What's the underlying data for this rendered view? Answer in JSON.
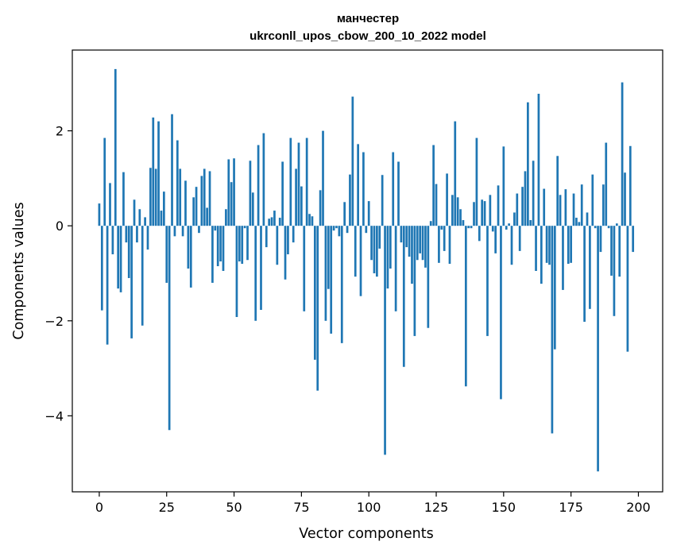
{
  "chart_data": {
    "type": "bar",
    "title_line1": "манчестер",
    "title_line2": "ukrconll_upos_cbow_200_10_2022 model",
    "xlabel": "Vector components",
    "ylabel": "Components values",
    "xlim": [
      -10,
      209
    ],
    "ylim": [
      -5.6,
      3.7
    ],
    "x_ticks": [
      0,
      25,
      50,
      75,
      100,
      125,
      150,
      175,
      200
    ],
    "y_ticks": [
      -4,
      -2,
      0,
      2
    ],
    "y_tick_labels": [
      "−4",
      "−2",
      "0",
      "2"
    ],
    "grid": false,
    "bar_color": "#1f77b4",
    "values": [
      0.47,
      -1.78,
      1.85,
      -2.5,
      0.9,
      -0.6,
      3.3,
      -1.32,
      -1.4,
      1.13,
      -0.35,
      -1.1,
      -2.37,
      0.55,
      -0.35,
      0.35,
      -2.1,
      0.18,
      -0.5,
      1.22,
      2.28,
      1.2,
      2.2,
      0.32,
      0.72,
      -1.2,
      -4.3,
      2.35,
      -0.22,
      1.8,
      1.2,
      -0.22,
      0.95,
      -0.9,
      -1.3,
      0.6,
      0.82,
      -0.15,
      1.05,
      1.2,
      0.38,
      1.15,
      -1.2,
      -0.1,
      -0.85,
      -0.75,
      -0.95,
      0.35,
      1.4,
      0.92,
      1.42,
      -1.92,
      -0.75,
      -0.8,
      -0.05,
      -0.72,
      1.37,
      0.7,
      -2.0,
      1.7,
      -1.77,
      1.95,
      -0.45,
      0.15,
      0.18,
      0.32,
      -0.82,
      0.17,
      1.35,
      -1.13,
      -0.6,
      1.85,
      -0.35,
      1.2,
      1.75,
      0.83,
      -1.8,
      1.85,
      0.25,
      0.2,
      -2.82,
      -3.47,
      0.75,
      2.0,
      -2.0,
      -1.33,
      -2.27,
      -0.1,
      -0.05,
      -0.22,
      -2.47,
      0.5,
      -0.15,
      1.08,
      2.72,
      -1.07,
      1.72,
      -1.48,
      1.55,
      -0.15,
      0.52,
      -0.72,
      -1.0,
      -1.07,
      -0.48,
      1.07,
      -4.82,
      -1.32,
      -0.9,
      1.55,
      -1.8,
      1.35,
      -0.35,
      -2.97,
      -0.45,
      -0.65,
      -1.22,
      -2.32,
      -0.72,
      -0.58,
      -0.72,
      -0.88,
      -2.15,
      0.1,
      1.7,
      0.88,
      -0.78,
      -0.08,
      -0.53,
      1.1,
      -0.8,
      0.65,
      2.2,
      0.6,
      0.35,
      0.12,
      -3.38,
      -0.05,
      -0.05,
      0.5,
      1.85,
      -0.32,
      0.55,
      0.52,
      -2.32,
      0.65,
      -0.12,
      -0.58,
      0.85,
      -3.65,
      1.67,
      -0.08,
      0.05,
      -0.82,
      0.28,
      0.68,
      -0.53,
      0.82,
      1.15,
      2.6,
      0.12,
      1.37,
      -0.95,
      2.78,
      -1.22,
      0.78,
      -0.78,
      -0.82,
      -4.37,
      -2.6,
      1.47,
      0.65,
      -1.35,
      0.77,
      -0.8,
      -0.78,
      0.68,
      0.17,
      0.08,
      0.87,
      -2.02,
      0.28,
      -1.75,
      1.08,
      -0.05,
      -5.17,
      -0.55,
      0.87,
      1.75,
      -0.05,
      -1.05,
      -1.9,
      0.05,
      -1.07,
      3.02,
      1.12,
      -2.65,
      1.68,
      -0.55
    ]
  }
}
